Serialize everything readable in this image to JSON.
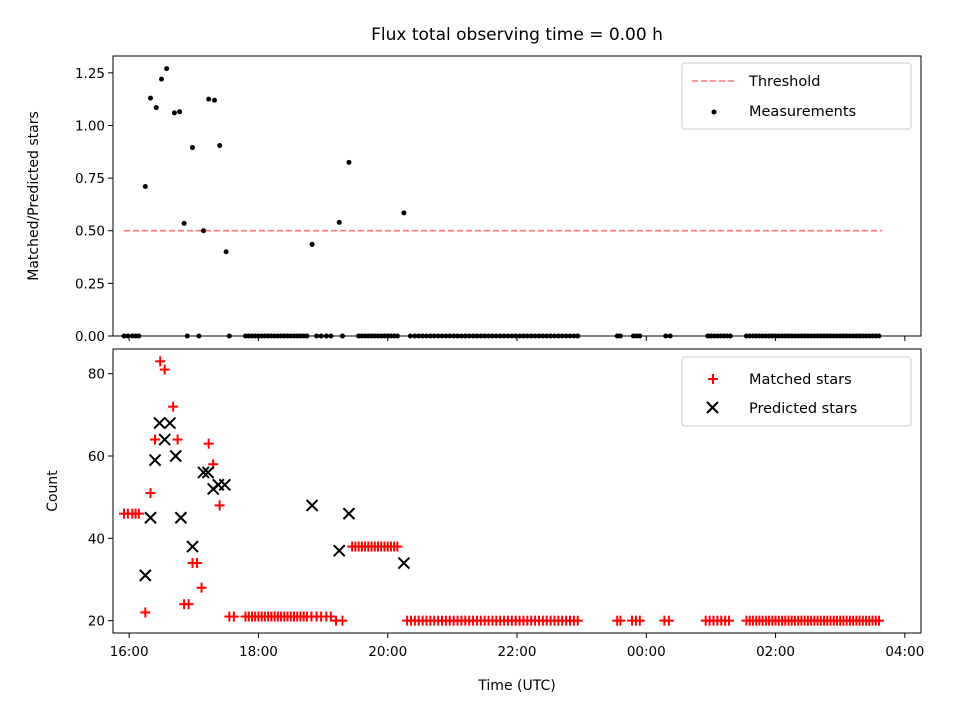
{
  "chart_data": [
    {
      "type": "scatter",
      "title": "Flux total observing time = 0.00 h",
      "xlabel": "",
      "ylabel": "Matched/Predicted stars",
      "ylim": [
        0.0,
        1.33
      ],
      "yticks": [
        0.0,
        0.25,
        0.5,
        0.75,
        1.0,
        1.25
      ],
      "ytick_labels": [
        "0.00",
        "0.25",
        "0.50",
        "0.75",
        "1.00",
        "1.25"
      ],
      "xlim_hours": [
        15.75,
        28.25
      ],
      "xticks_hours": [
        16,
        18,
        20,
        22,
        24,
        26,
        28
      ],
      "xtick_labels": [],
      "legend_placement": "top-right",
      "threshold": {
        "name": "Threshold",
        "value": 0.5,
        "x_range_hours": [
          15.92,
          27.65
        ],
        "color": "#ff7777"
      },
      "measurements": {
        "name": "Measurements",
        "color": "#000000",
        "points": [
          [
            16.25,
            0.71
          ],
          [
            16.33,
            1.13
          ],
          [
            16.42,
            1.085
          ],
          [
            16.5,
            1.22
          ],
          [
            16.58,
            1.27
          ],
          [
            16.7,
            1.06
          ],
          [
            16.78,
            1.065
          ],
          [
            16.85,
            0.535
          ],
          [
            16.98,
            0.895
          ],
          [
            17.15,
            0.5
          ],
          [
            17.23,
            1.125
          ],
          [
            17.32,
            1.12
          ],
          [
            17.4,
            0.905
          ],
          [
            17.5,
            0.4
          ],
          [
            18.83,
            0.435
          ],
          [
            19.25,
            0.54
          ],
          [
            19.4,
            0.825
          ],
          [
            20.25,
            0.585
          ]
        ],
        "zero_hours": [
          15.92,
          15.98,
          16.05,
          16.1,
          16.15,
          16.9,
          17.08,
          17.55,
          17.8,
          17.85,
          17.9,
          17.95,
          18.0,
          18.05,
          18.1,
          18.15,
          18.2,
          18.25,
          18.3,
          18.35,
          18.4,
          18.45,
          18.5,
          18.55,
          18.6,
          18.65,
          18.7,
          18.75,
          18.9,
          18.97,
          19.05,
          19.12,
          19.3,
          19.55,
          19.6,
          19.65,
          19.7,
          19.75,
          19.8,
          19.85,
          19.9,
          19.95,
          20.0,
          20.05,
          20.1,
          20.15,
          20.35,
          20.42,
          20.48,
          20.54,
          20.6,
          20.66,
          20.72,
          20.78,
          20.84,
          20.9,
          20.96,
          21.02,
          21.08,
          21.14,
          21.2,
          21.26,
          21.32,
          21.38,
          21.44,
          21.5,
          21.56,
          21.62,
          21.68,
          21.74,
          21.8,
          21.86,
          21.92,
          21.98,
          22.04,
          22.1,
          22.16,
          22.22,
          22.28,
          22.34,
          22.4,
          22.46,
          22.52,
          22.58,
          22.64,
          22.7,
          22.76,
          22.82,
          22.88,
          22.94,
          23.55,
          23.6,
          23.8,
          23.85,
          23.9,
          24.3,
          24.37,
          24.95,
          25.0,
          25.05,
          25.1,
          25.15,
          25.2,
          25.25,
          25.3,
          25.55,
          25.6,
          25.65,
          25.7,
          25.75,
          25.8,
          25.85,
          25.9,
          25.95,
          26.0,
          26.05,
          26.1,
          26.15,
          26.2,
          26.25,
          26.3,
          26.35,
          26.4,
          26.45,
          26.5,
          26.55,
          26.6,
          26.65,
          26.7,
          26.75,
          26.8,
          26.85,
          26.9,
          26.95,
          27.0,
          27.05,
          27.1,
          27.15,
          27.2,
          27.25,
          27.3,
          27.35,
          27.4,
          27.45,
          27.5,
          27.55,
          27.6
        ]
      }
    },
    {
      "type": "scatter",
      "title": "",
      "xlabel": "Time (UTC)",
      "ylabel": "Count",
      "ylim": [
        17,
        86
      ],
      "yticks": [
        20,
        40,
        60,
        80
      ],
      "ytick_labels": [
        "20",
        "40",
        "60",
        "80"
      ],
      "xlim_hours": [
        15.75,
        28.25
      ],
      "xticks_hours": [
        16,
        18,
        20,
        22,
        24,
        26,
        28
      ],
      "xtick_labels": [
        "16:00",
        "18:00",
        "20:00",
        "22:00",
        "00:00",
        "02:00",
        "04:00"
      ],
      "legend_placement": "top-right",
      "series": [
        {
          "name": "Matched stars",
          "marker": "plus",
          "color": "#ff0000",
          "points": [
            [
              15.92,
              46
            ],
            [
              15.98,
              46
            ],
            [
              16.05,
              46
            ],
            [
              16.1,
              46
            ],
            [
              16.15,
              46
            ],
            [
              16.25,
              22
            ],
            [
              16.33,
              51
            ],
            [
              16.4,
              64
            ],
            [
              16.48,
              83
            ],
            [
              16.55,
              81
            ],
            [
              16.68,
              72
            ],
            [
              16.75,
              64
            ],
            [
              16.85,
              24
            ],
            [
              16.92,
              24
            ],
            [
              16.98,
              34
            ],
            [
              17.05,
              34
            ],
            [
              17.12,
              28
            ],
            [
              17.23,
              63
            ],
            [
              17.3,
              58
            ],
            [
              17.4,
              48
            ],
            [
              17.55,
              21
            ],
            [
              17.62,
              21
            ],
            [
              17.8,
              21
            ],
            [
              17.85,
              21
            ],
            [
              17.9,
              21
            ],
            [
              17.95,
              21
            ],
            [
              18.0,
              21
            ],
            [
              18.05,
              21
            ],
            [
              18.1,
              21
            ],
            [
              18.15,
              21
            ],
            [
              18.2,
              21
            ],
            [
              18.25,
              21
            ],
            [
              18.3,
              21
            ],
            [
              18.35,
              21
            ],
            [
              18.4,
              21
            ],
            [
              18.45,
              21
            ],
            [
              18.5,
              21
            ],
            [
              18.55,
              21
            ],
            [
              18.6,
              21
            ],
            [
              18.65,
              21
            ],
            [
              18.7,
              21
            ],
            [
              18.75,
              21
            ],
            [
              18.82,
              21
            ],
            [
              18.9,
              21
            ],
            [
              18.97,
              21
            ],
            [
              19.05,
              21
            ],
            [
              19.12,
              21
            ],
            [
              19.2,
              20
            ],
            [
              19.3,
              20
            ],
            [
              19.45,
              38
            ],
            [
              19.5,
              38
            ],
            [
              19.55,
              38
            ],
            [
              19.6,
              38
            ],
            [
              19.65,
              38
            ],
            [
              19.7,
              38
            ],
            [
              19.75,
              38
            ],
            [
              19.8,
              38
            ],
            [
              19.85,
              38
            ],
            [
              19.9,
              38
            ],
            [
              19.95,
              38
            ],
            [
              20.0,
              38
            ],
            [
              20.05,
              38
            ],
            [
              20.1,
              38
            ],
            [
              20.15,
              38
            ],
            [
              20.3,
              20
            ],
            [
              20.36,
              20
            ],
            [
              20.42,
              20
            ],
            [
              20.48,
              20
            ],
            [
              20.54,
              20
            ],
            [
              20.6,
              20
            ],
            [
              20.66,
              20
            ],
            [
              20.72,
              20
            ],
            [
              20.78,
              20
            ],
            [
              20.84,
              20
            ],
            [
              20.9,
              20
            ],
            [
              20.96,
              20
            ],
            [
              21.02,
              20
            ],
            [
              21.08,
              20
            ],
            [
              21.14,
              20
            ],
            [
              21.2,
              20
            ],
            [
              21.26,
              20
            ],
            [
              21.32,
              20
            ],
            [
              21.38,
              20
            ],
            [
              21.44,
              20
            ],
            [
              21.5,
              20
            ],
            [
              21.56,
              20
            ],
            [
              21.62,
              20
            ],
            [
              21.68,
              20
            ],
            [
              21.74,
              20
            ],
            [
              21.8,
              20
            ],
            [
              21.86,
              20
            ],
            [
              21.92,
              20
            ],
            [
              21.98,
              20
            ],
            [
              22.04,
              20
            ],
            [
              22.1,
              20
            ],
            [
              22.16,
              20
            ],
            [
              22.22,
              20
            ],
            [
              22.28,
              20
            ],
            [
              22.34,
              20
            ],
            [
              22.4,
              20
            ],
            [
              22.46,
              20
            ],
            [
              22.52,
              20
            ],
            [
              22.58,
              20
            ],
            [
              22.64,
              20
            ],
            [
              22.7,
              20
            ],
            [
              22.76,
              20
            ],
            [
              22.82,
              20
            ],
            [
              22.88,
              20
            ],
            [
              22.94,
              20
            ],
            [
              23.55,
              20
            ],
            [
              23.6,
              20
            ],
            [
              23.78,
              20
            ],
            [
              23.84,
              20
            ],
            [
              23.9,
              20
            ],
            [
              24.28,
              20
            ],
            [
              24.35,
              20
            ],
            [
              24.92,
              20
            ],
            [
              24.98,
              20
            ],
            [
              25.04,
              20
            ],
            [
              25.1,
              20
            ],
            [
              25.16,
              20
            ],
            [
              25.22,
              20
            ],
            [
              25.28,
              20
            ],
            [
              25.55,
              20
            ],
            [
              25.6,
              20
            ],
            [
              25.65,
              20
            ],
            [
              25.7,
              20
            ],
            [
              25.75,
              20
            ],
            [
              25.8,
              20
            ],
            [
              25.85,
              20
            ],
            [
              25.9,
              20
            ],
            [
              25.95,
              20
            ],
            [
              26.0,
              20
            ],
            [
              26.05,
              20
            ],
            [
              26.1,
              20
            ],
            [
              26.15,
              20
            ],
            [
              26.2,
              20
            ],
            [
              26.25,
              20
            ],
            [
              26.3,
              20
            ],
            [
              26.35,
              20
            ],
            [
              26.4,
              20
            ],
            [
              26.45,
              20
            ],
            [
              26.5,
              20
            ],
            [
              26.55,
              20
            ],
            [
              26.6,
              20
            ],
            [
              26.65,
              20
            ],
            [
              26.7,
              20
            ],
            [
              26.75,
              20
            ],
            [
              26.8,
              20
            ],
            [
              26.85,
              20
            ],
            [
              26.9,
              20
            ],
            [
              26.95,
              20
            ],
            [
              27.0,
              20
            ],
            [
              27.05,
              20
            ],
            [
              27.1,
              20
            ],
            [
              27.15,
              20
            ],
            [
              27.2,
              20
            ],
            [
              27.25,
              20
            ],
            [
              27.3,
              20
            ],
            [
              27.35,
              20
            ],
            [
              27.4,
              20
            ],
            [
              27.45,
              20
            ],
            [
              27.5,
              20
            ],
            [
              27.55,
              20
            ],
            [
              27.6,
              20
            ]
          ]
        },
        {
          "name": "Predicted stars",
          "marker": "x",
          "color": "#000000",
          "points": [
            [
              16.25,
              31
            ],
            [
              16.33,
              45
            ],
            [
              16.4,
              59
            ],
            [
              16.47,
              68
            ],
            [
              16.55,
              64
            ],
            [
              16.63,
              68
            ],
            [
              16.72,
              60
            ],
            [
              16.8,
              45
            ],
            [
              16.98,
              38
            ],
            [
              17.15,
              56
            ],
            [
              17.22,
              56
            ],
            [
              17.3,
              52
            ],
            [
              17.38,
              53
            ],
            [
              17.48,
              53
            ],
            [
              18.83,
              48
            ],
            [
              19.25,
              37
            ],
            [
              19.4,
              46
            ],
            [
              20.25,
              34
            ]
          ]
        }
      ]
    }
  ]
}
